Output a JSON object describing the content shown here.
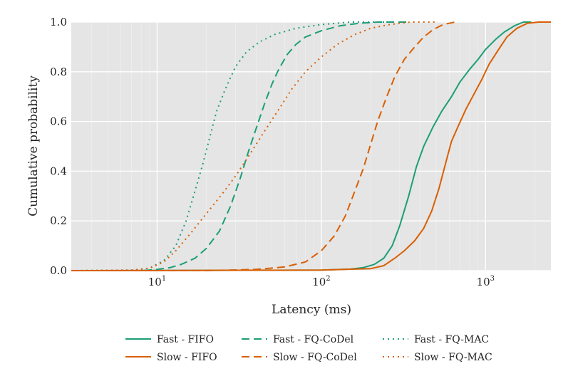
{
  "chart_data": {
    "type": "line",
    "title": "",
    "xlabel": "Latency (ms)",
    "ylabel": "Cumulative probability",
    "x_scale": "log",
    "xlim": [
      3,
      2500
    ],
    "ylim": [
      0,
      1
    ],
    "x_ticks": [
      {
        "value": 10,
        "base": "10",
        "exp": "1"
      },
      {
        "value": 100,
        "base": "10",
        "exp": "2"
      },
      {
        "value": 1000,
        "base": "10",
        "exp": "3"
      }
    ],
    "y_ticks": [
      "0.0",
      "0.2",
      "0.4",
      "0.6",
      "0.8",
      "1.0"
    ],
    "grid": true,
    "background": "#e5e5e5",
    "legend_position": "bottom",
    "colors": {
      "fast": "#1b9e77",
      "slow": "#d95f02"
    },
    "series": [
      {
        "name": "Fast - FIFO",
        "color": "#1b9e77",
        "dash": "solid",
        "points": [
          [
            3,
            0
          ],
          [
            100,
            0.002
          ],
          [
            150,
            0.006
          ],
          [
            180,
            0.012
          ],
          [
            210,
            0.025
          ],
          [
            240,
            0.05
          ],
          [
            270,
            0.1
          ],
          [
            300,
            0.18
          ],
          [
            340,
            0.3
          ],
          [
            380,
            0.42
          ],
          [
            420,
            0.5
          ],
          [
            480,
            0.58
          ],
          [
            540,
            0.64
          ],
          [
            620,
            0.7
          ],
          [
            700,
            0.76
          ],
          [
            800,
            0.81
          ],
          [
            900,
            0.85
          ],
          [
            1000,
            0.89
          ],
          [
            1150,
            0.93
          ],
          [
            1300,
            0.96
          ],
          [
            1500,
            0.985
          ],
          [
            1700,
            1.0
          ],
          [
            1900,
            1.0
          ]
        ]
      },
      {
        "name": "Slow - FIFO",
        "color": "#d95f02",
        "dash": "solid",
        "points": [
          [
            3,
            0
          ],
          [
            100,
            0.002
          ],
          [
            200,
            0.008
          ],
          [
            240,
            0.02
          ],
          [
            280,
            0.05
          ],
          [
            320,
            0.08
          ],
          [
            370,
            0.12
          ],
          [
            420,
            0.17
          ],
          [
            470,
            0.24
          ],
          [
            520,
            0.33
          ],
          [
            570,
            0.43
          ],
          [
            620,
            0.52
          ],
          [
            680,
            0.58
          ],
          [
            760,
            0.65
          ],
          [
            850,
            0.71
          ],
          [
            950,
            0.77
          ],
          [
            1050,
            0.83
          ],
          [
            1200,
            0.89
          ],
          [
            1350,
            0.94
          ],
          [
            1550,
            0.975
          ],
          [
            1800,
            0.995
          ],
          [
            2100,
            1.0
          ],
          [
            2500,
            1.0
          ]
        ]
      },
      {
        "name": "Fast - FQ-CoDel",
        "color": "#1b9e77",
        "dash": "dashed",
        "points": [
          [
            3,
            0
          ],
          [
            8,
            0
          ],
          [
            10,
            0.005
          ],
          [
            12,
            0.012
          ],
          [
            14,
            0.025
          ],
          [
            17,
            0.05
          ],
          [
            20,
            0.09
          ],
          [
            24,
            0.16
          ],
          [
            28,
            0.26
          ],
          [
            32,
            0.37
          ],
          [
            36,
            0.48
          ],
          [
            40,
            0.57
          ],
          [
            45,
            0.67
          ],
          [
            50,
            0.75
          ],
          [
            55,
            0.81
          ],
          [
            62,
            0.87
          ],
          [
            70,
            0.91
          ],
          [
            80,
            0.94
          ],
          [
            100,
            0.965
          ],
          [
            130,
            0.985
          ],
          [
            170,
            0.995
          ],
          [
            220,
            1.0
          ],
          [
            350,
            1.0
          ]
        ]
      },
      {
        "name": "Slow - FQ-CoDel",
        "color": "#d95f02",
        "dash": "dashed",
        "points": [
          [
            3,
            0
          ],
          [
            20,
            0
          ],
          [
            40,
            0.005
          ],
          [
            60,
            0.015
          ],
          [
            80,
            0.035
          ],
          [
            100,
            0.08
          ],
          [
            120,
            0.14
          ],
          [
            140,
            0.22
          ],
          [
            160,
            0.32
          ],
          [
            180,
            0.41
          ],
          [
            200,
            0.51
          ],
          [
            220,
            0.6
          ],
          [
            250,
            0.7
          ],
          [
            280,
            0.78
          ],
          [
            320,
            0.85
          ],
          [
            370,
            0.9
          ],
          [
            420,
            0.94
          ],
          [
            480,
            0.97
          ],
          [
            550,
            0.99
          ],
          [
            650,
            1.0
          ]
        ]
      },
      {
        "name": "Fast - FQ-MAC",
        "color": "#1b9e77",
        "dash": "dotted",
        "points": [
          [
            3,
            0
          ],
          [
            7,
            0.002
          ],
          [
            9,
            0.01
          ],
          [
            11,
            0.04
          ],
          [
            13,
            0.1
          ],
          [
            15,
            0.2
          ],
          [
            17,
            0.32
          ],
          [
            19,
            0.43
          ],
          [
            21,
            0.54
          ],
          [
            23,
            0.64
          ],
          [
            26,
            0.73
          ],
          [
            30,
            0.82
          ],
          [
            35,
            0.88
          ],
          [
            42,
            0.92
          ],
          [
            52,
            0.95
          ],
          [
            70,
            0.975
          ],
          [
            100,
            0.99
          ],
          [
            150,
            1.0
          ],
          [
            250,
            1.0
          ]
        ]
      },
      {
        "name": "Slow - FQ-MAC",
        "color": "#d95f02",
        "dash": "dotted",
        "points": [
          [
            3,
            0
          ],
          [
            7,
            0.002
          ],
          [
            9,
            0.01
          ],
          [
            11,
            0.035
          ],
          [
            13,
            0.08
          ],
          [
            16,
            0.15
          ],
          [
            20,
            0.23
          ],
          [
            25,
            0.31
          ],
          [
            30,
            0.38
          ],
          [
            36,
            0.46
          ],
          [
            44,
            0.55
          ],
          [
            54,
            0.64
          ],
          [
            66,
            0.73
          ],
          [
            80,
            0.8
          ],
          [
            100,
            0.86
          ],
          [
            125,
            0.91
          ],
          [
            160,
            0.95
          ],
          [
            200,
            0.975
          ],
          [
            260,
            0.99
          ],
          [
            350,
            1.0
          ],
          [
            500,
            1.0
          ]
        ]
      }
    ]
  }
}
